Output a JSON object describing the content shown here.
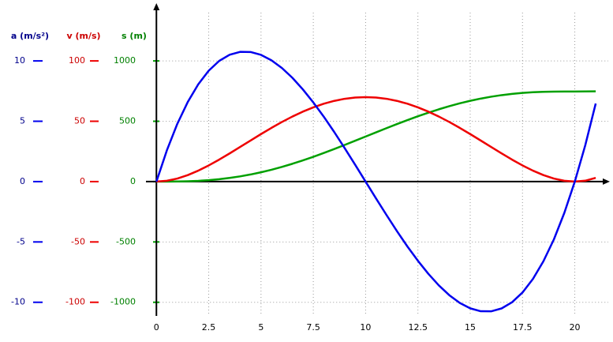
{
  "chart_data": {
    "type": "line",
    "x": [
      0,
      0.5,
      1,
      1.5,
      2,
      2.5,
      3,
      3.5,
      4,
      4.5,
      5,
      5.5,
      6,
      6.5,
      7,
      7.5,
      8,
      8.5,
      9,
      9.5,
      10,
      10.5,
      11,
      11.5,
      12,
      12.5,
      13,
      13.5,
      14,
      14.5,
      15,
      15.5,
      16,
      16.5,
      17,
      17.5,
      18,
      18.5,
      19,
      19.5,
      20,
      20.5,
      21
    ],
    "xlim": [
      -0.5,
      21.6
    ],
    "xticks": [
      0,
      2.5,
      5,
      7.5,
      10,
      12.5,
      15,
      17.5,
      20
    ],
    "ylim": [
      -11,
      14
    ],
    "yticks": [
      -10,
      -5,
      0,
      5,
      10
    ],
    "y2lim": [
      -110,
      140
    ],
    "y2ticks": [
      -100,
      -50,
      0,
      50,
      100
    ],
    "y3lim": [
      -1100,
      1400
    ],
    "y3ticks": [
      -1000,
      -500,
      0,
      500,
      1000
    ],
    "grid": true,
    "series": [
      {
        "name": "a (m/s²)",
        "axis": "y",
        "color": "#0000ee",
        "label_color": "#00008b",
        "values": [
          0,
          2.59,
          4.79,
          6.6,
          8.06,
          9.19,
          10,
          10.51,
          10.75,
          10.74,
          10.5,
          10.05,
          9.41,
          8.6,
          7.64,
          6.56,
          5.38,
          4.11,
          2.77,
          1.4,
          0,
          -1.4,
          -2.77,
          -4.11,
          -5.38,
          -6.56,
          -7.64,
          -8.6,
          -9.41,
          -10.05,
          -10.5,
          -10.74,
          -10.75,
          -10.51,
          -10,
          -9.19,
          -8.06,
          -6.6,
          -4.79,
          -2.59,
          0,
          3.01,
          6.47
        ]
      },
      {
        "name": "v (m/s)",
        "axis": "y2",
        "color": "#ee0000",
        "label_color": "#cc0000",
        "values": [
          0,
          0.67,
          2.53,
          5.39,
          9.07,
          13.4,
          18.21,
          23.35,
          28.67,
          34.06,
          39.38,
          44.52,
          49.39,
          53.9,
          57.97,
          61.52,
          64.51,
          66.89,
          68.61,
          69.65,
          70,
          69.65,
          68.61,
          66.89,
          64.51,
          61.52,
          57.97,
          53.9,
          49.39,
          44.52,
          39.38,
          34.06,
          28.67,
          23.35,
          18.21,
          13.4,
          9.07,
          5.39,
          2.53,
          0.67,
          0,
          0.74,
          3.09
        ]
      },
      {
        "name": "s (m)",
        "axis": "y3",
        "color": "#00a000",
        "label_color": "#008000",
        "values": [
          0,
          0.11,
          0.86,
          2.81,
          6.39,
          11.99,
          19.87,
          30.25,
          43.25,
          58.93,
          77.29,
          98.27,
          121.77,
          147.61,
          175.59,
          205.49,
          237.02,
          269.9,
          303.8,
          338.39,
          373.33,
          408.28,
          442.87,
          476.77,
          509.65,
          541.18,
          571.08,
          599.06,
          624.9,
          648.4,
          669.38,
          687.74,
          703.42,
          716.42,
          726.8,
          734.68,
          740.28,
          743.86,
          745.81,
          746.56,
          746.67,
          746.79,
          747.67
        ]
      }
    ]
  }
}
